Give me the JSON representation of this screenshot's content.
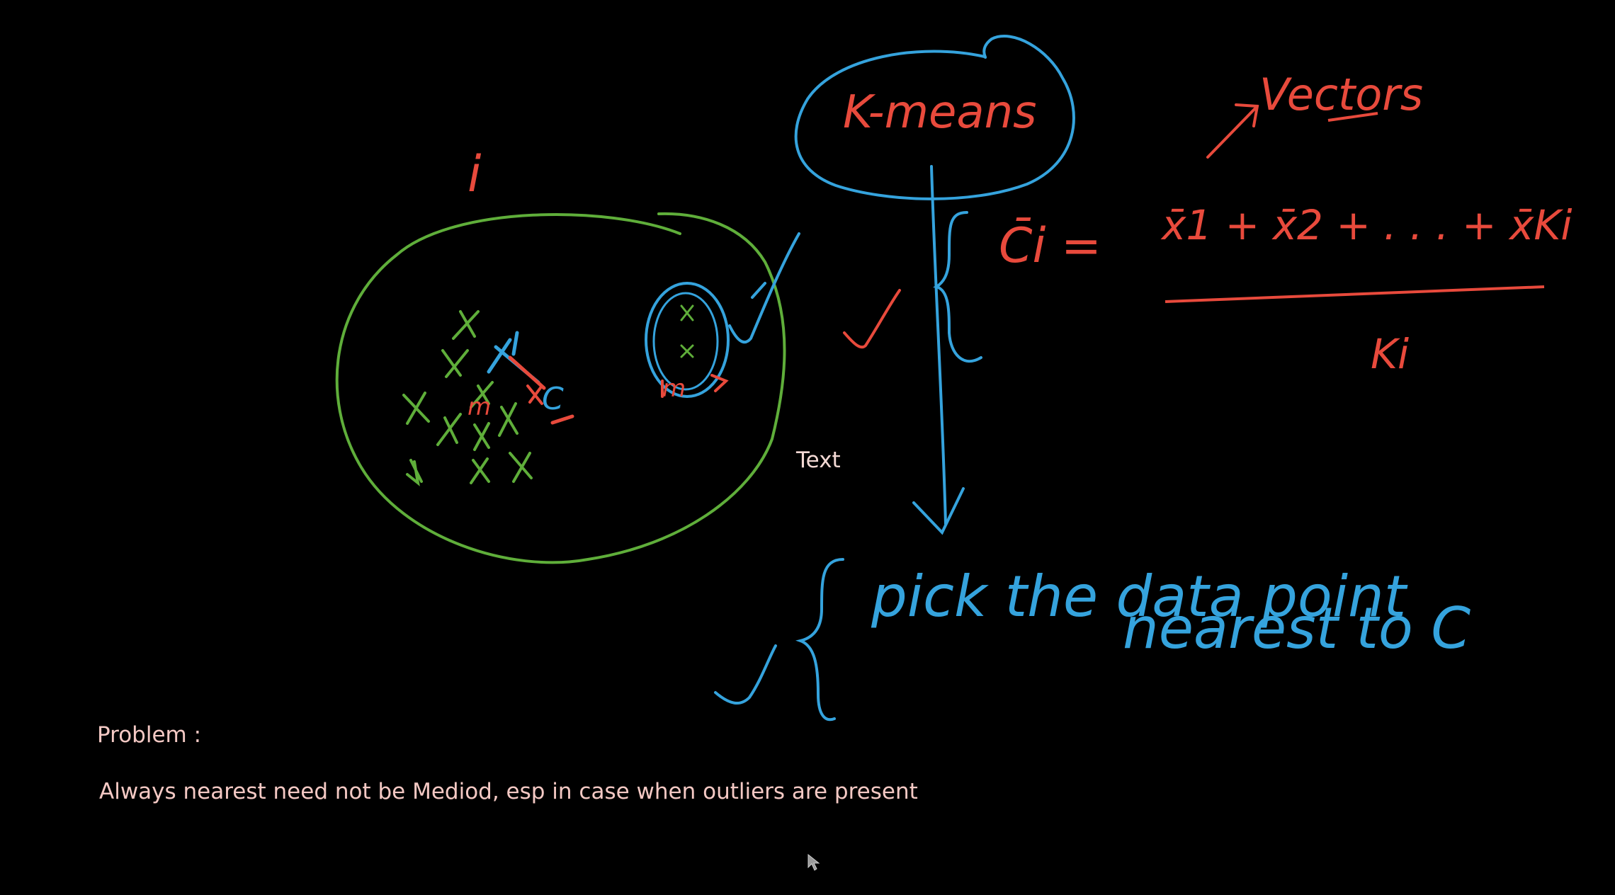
{
  "colors": {
    "background": "#000000",
    "green_ink": "#5fae3a",
    "blue_ink": "#35a3dd",
    "red_ink": "#e84a3c",
    "typed_text": "#f4c9c4"
  },
  "board": {
    "cluster_index": "i",
    "medoid_mark": "m",
    "centroid_mark": "C",
    "outlier_mark": "m",
    "method_title": "K-means",
    "vectors_note": "Vectors",
    "centroid_formula": {
      "lhs": "C̄i =",
      "numerator": "x̄1 + x̄2 + . . .  + x̄Ki",
      "denominator": "Ki"
    },
    "step_note_line1": "pick the data point",
    "step_note_line2": "nearest to C"
  },
  "text_box": {
    "label": "Text"
  },
  "problem": {
    "label": "Problem :",
    "text": "Always nearest need not be Mediod, esp in case when outliers are present"
  },
  "icons": {
    "cursor": "mouse-pointer-icon"
  }
}
